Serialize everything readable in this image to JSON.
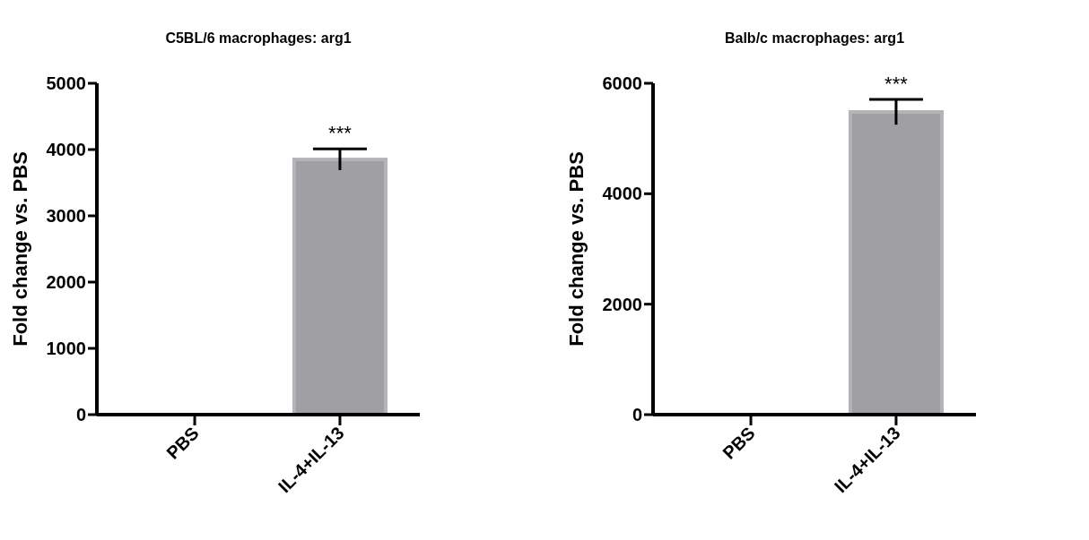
{
  "chart_data": [
    {
      "type": "bar",
      "title": "C5BL/6 macrophages: arg1",
      "ylabel": "Fold change vs. PBS",
      "categories": [
        "PBS",
        "IL-4+IL-13"
      ],
      "values": [
        0,
        3850
      ],
      "errors": [
        null,
        160
      ],
      "color": "#a09fa4",
      "ylim": [
        0,
        5000
      ],
      "yticks": [
        0,
        1000,
        2000,
        3000,
        4000,
        5000
      ],
      "grid": false,
      "annotations": [
        {
          "text": "***",
          "x": "IL-4+IL-13",
          "y": 4010
        }
      ]
    },
    {
      "type": "bar",
      "title": "Balb/c macrophages: arg1",
      "ylabel": "Fold change vs. PBS",
      "categories": [
        "PBS",
        "IL-4+IL-13"
      ],
      "values": [
        0,
        5480
      ],
      "errors": [
        null,
        230
      ],
      "color": "#a09fa4",
      "ylim": [
        0,
        6000
      ],
      "yticks": [
        0,
        2000,
        4000,
        6000
      ],
      "grid": false,
      "annotations": [
        {
          "text": "***",
          "x": "IL-4+IL-13",
          "y": 5710
        }
      ]
    }
  ]
}
